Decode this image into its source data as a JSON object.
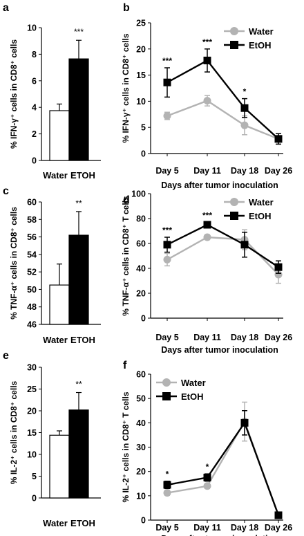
{
  "colors": {
    "water_bar": "#ffffff",
    "etoh_bar": "#000000",
    "water_line": "#b3b3b3",
    "etoh_line": "#000000",
    "axis": "#000000"
  },
  "chart_data": [
    {
      "panel": "a",
      "type": "bar",
      "categories": [
        "Water",
        "ETOH"
      ],
      "values": [
        3.75,
        7.65
      ],
      "errors": [
        0.5,
        1.4
      ],
      "ylabel": "% IFN-γ⁺ cells in CD8⁺ cells",
      "ylim": [
        0,
        10
      ],
      "yticks": [
        0,
        2,
        4,
        6,
        8,
        10
      ],
      "significance": [
        {
          "category": "ETOH",
          "label": "***"
        }
      ]
    },
    {
      "panel": "b",
      "type": "line",
      "categories": [
        "Day 5",
        "Day 11",
        "Day 18",
        "Day 26"
      ],
      "series": [
        {
          "name": "Water",
          "values": [
            7.2,
            10.1,
            5.4,
            2.8
          ],
          "errors": [
            0.7,
            1.0,
            1.8,
            1.0
          ]
        },
        {
          "name": "EtOH",
          "values": [
            13.6,
            17.8,
            8.7,
            2.8
          ],
          "errors": [
            2.8,
            2.2,
            1.8,
            1.0
          ]
        }
      ],
      "xlabel": "Days after tumor inoculation",
      "ylabel": "% IFN-γ⁺ cells in CD8⁺ cells",
      "ylim": [
        0,
        25
      ],
      "yticks": [
        0,
        5,
        10,
        15,
        20,
        25
      ],
      "legend": "top-right",
      "significance": [
        {
          "category": "Day 5",
          "label": "***"
        },
        {
          "category": "Day 11",
          "label": "***"
        },
        {
          "category": "Day 18",
          "label": "*"
        }
      ]
    },
    {
      "panel": "c",
      "type": "bar",
      "categories": [
        "Water",
        "ETOH"
      ],
      "values": [
        50.5,
        56.2
      ],
      "errors": [
        2.4,
        2.7
      ],
      "ylabel": "% TNF-α⁺ cells in CD8⁺ cells",
      "ylim": [
        46,
        60
      ],
      "yticks": [
        46,
        48,
        50,
        52,
        54,
        56,
        58,
        60
      ],
      "significance": [
        {
          "category": "ETOH",
          "label": "**"
        }
      ]
    },
    {
      "panel": "d",
      "type": "line",
      "categories": [
        "Day 5",
        "Day 11",
        "Day 18",
        "Day 26"
      ],
      "series": [
        {
          "name": "Water",
          "values": [
            47,
            65,
            63,
            35
          ],
          "errors": [
            5,
            2,
            8,
            7
          ]
        },
        {
          "name": "EtOH",
          "values": [
            59,
            75,
            59,
            41
          ],
          "errors": [
            6,
            2,
            10,
            5
          ]
        }
      ],
      "xlabel": "Days after tumor inoculation",
      "ylabel": "% TNF-α⁺ cells in CD8⁺ T cells",
      "ylim": [
        0,
        100
      ],
      "yticks": [
        0,
        20,
        40,
        60,
        80,
        100
      ],
      "legend": "top-right",
      "significance": [
        {
          "category": "Day 5",
          "label": "***"
        },
        {
          "category": "Day 11",
          "label": "***"
        }
      ]
    },
    {
      "panel": "e",
      "type": "bar",
      "categories": [
        "Water",
        "ETOH"
      ],
      "values": [
        14.4,
        20.2
      ],
      "errors": [
        1.0,
        4.0
      ],
      "ylabel": "% IL-2⁺ cells in CD8⁺ cells",
      "ylim": [
        0,
        30
      ],
      "yticks": [
        0,
        5,
        10,
        15,
        20,
        25,
        30
      ],
      "significance": [
        {
          "category": "ETOH",
          "label": "**"
        }
      ]
    },
    {
      "panel": "f",
      "type": "line",
      "categories": [
        "Day 5",
        "Day 11",
        "Day 18",
        "Day 26"
      ],
      "series": [
        {
          "name": "Water",
          "values": [
            11.2,
            14.0,
            40.5,
            2.0
          ],
          "errors": [
            1.0,
            1.0,
            8.0,
            0.5
          ]
        },
        {
          "name": "EtOH",
          "values": [
            14.5,
            17.5,
            40.0,
            2.0
          ],
          "errors": [
            1.5,
            1.5,
            5.0,
            0.5
          ]
        }
      ],
      "xlabel": "Days after tumor inoculation",
      "ylabel": "% IL-2⁺ cells in CD8⁺ T cells",
      "ylim": [
        0,
        60
      ],
      "yticks": [
        0,
        10,
        20,
        30,
        40,
        50,
        60
      ],
      "legend": "top-left",
      "significance": [
        {
          "category": "Day 5",
          "label": "*"
        },
        {
          "category": "Day 11",
          "label": "*"
        }
      ]
    }
  ]
}
